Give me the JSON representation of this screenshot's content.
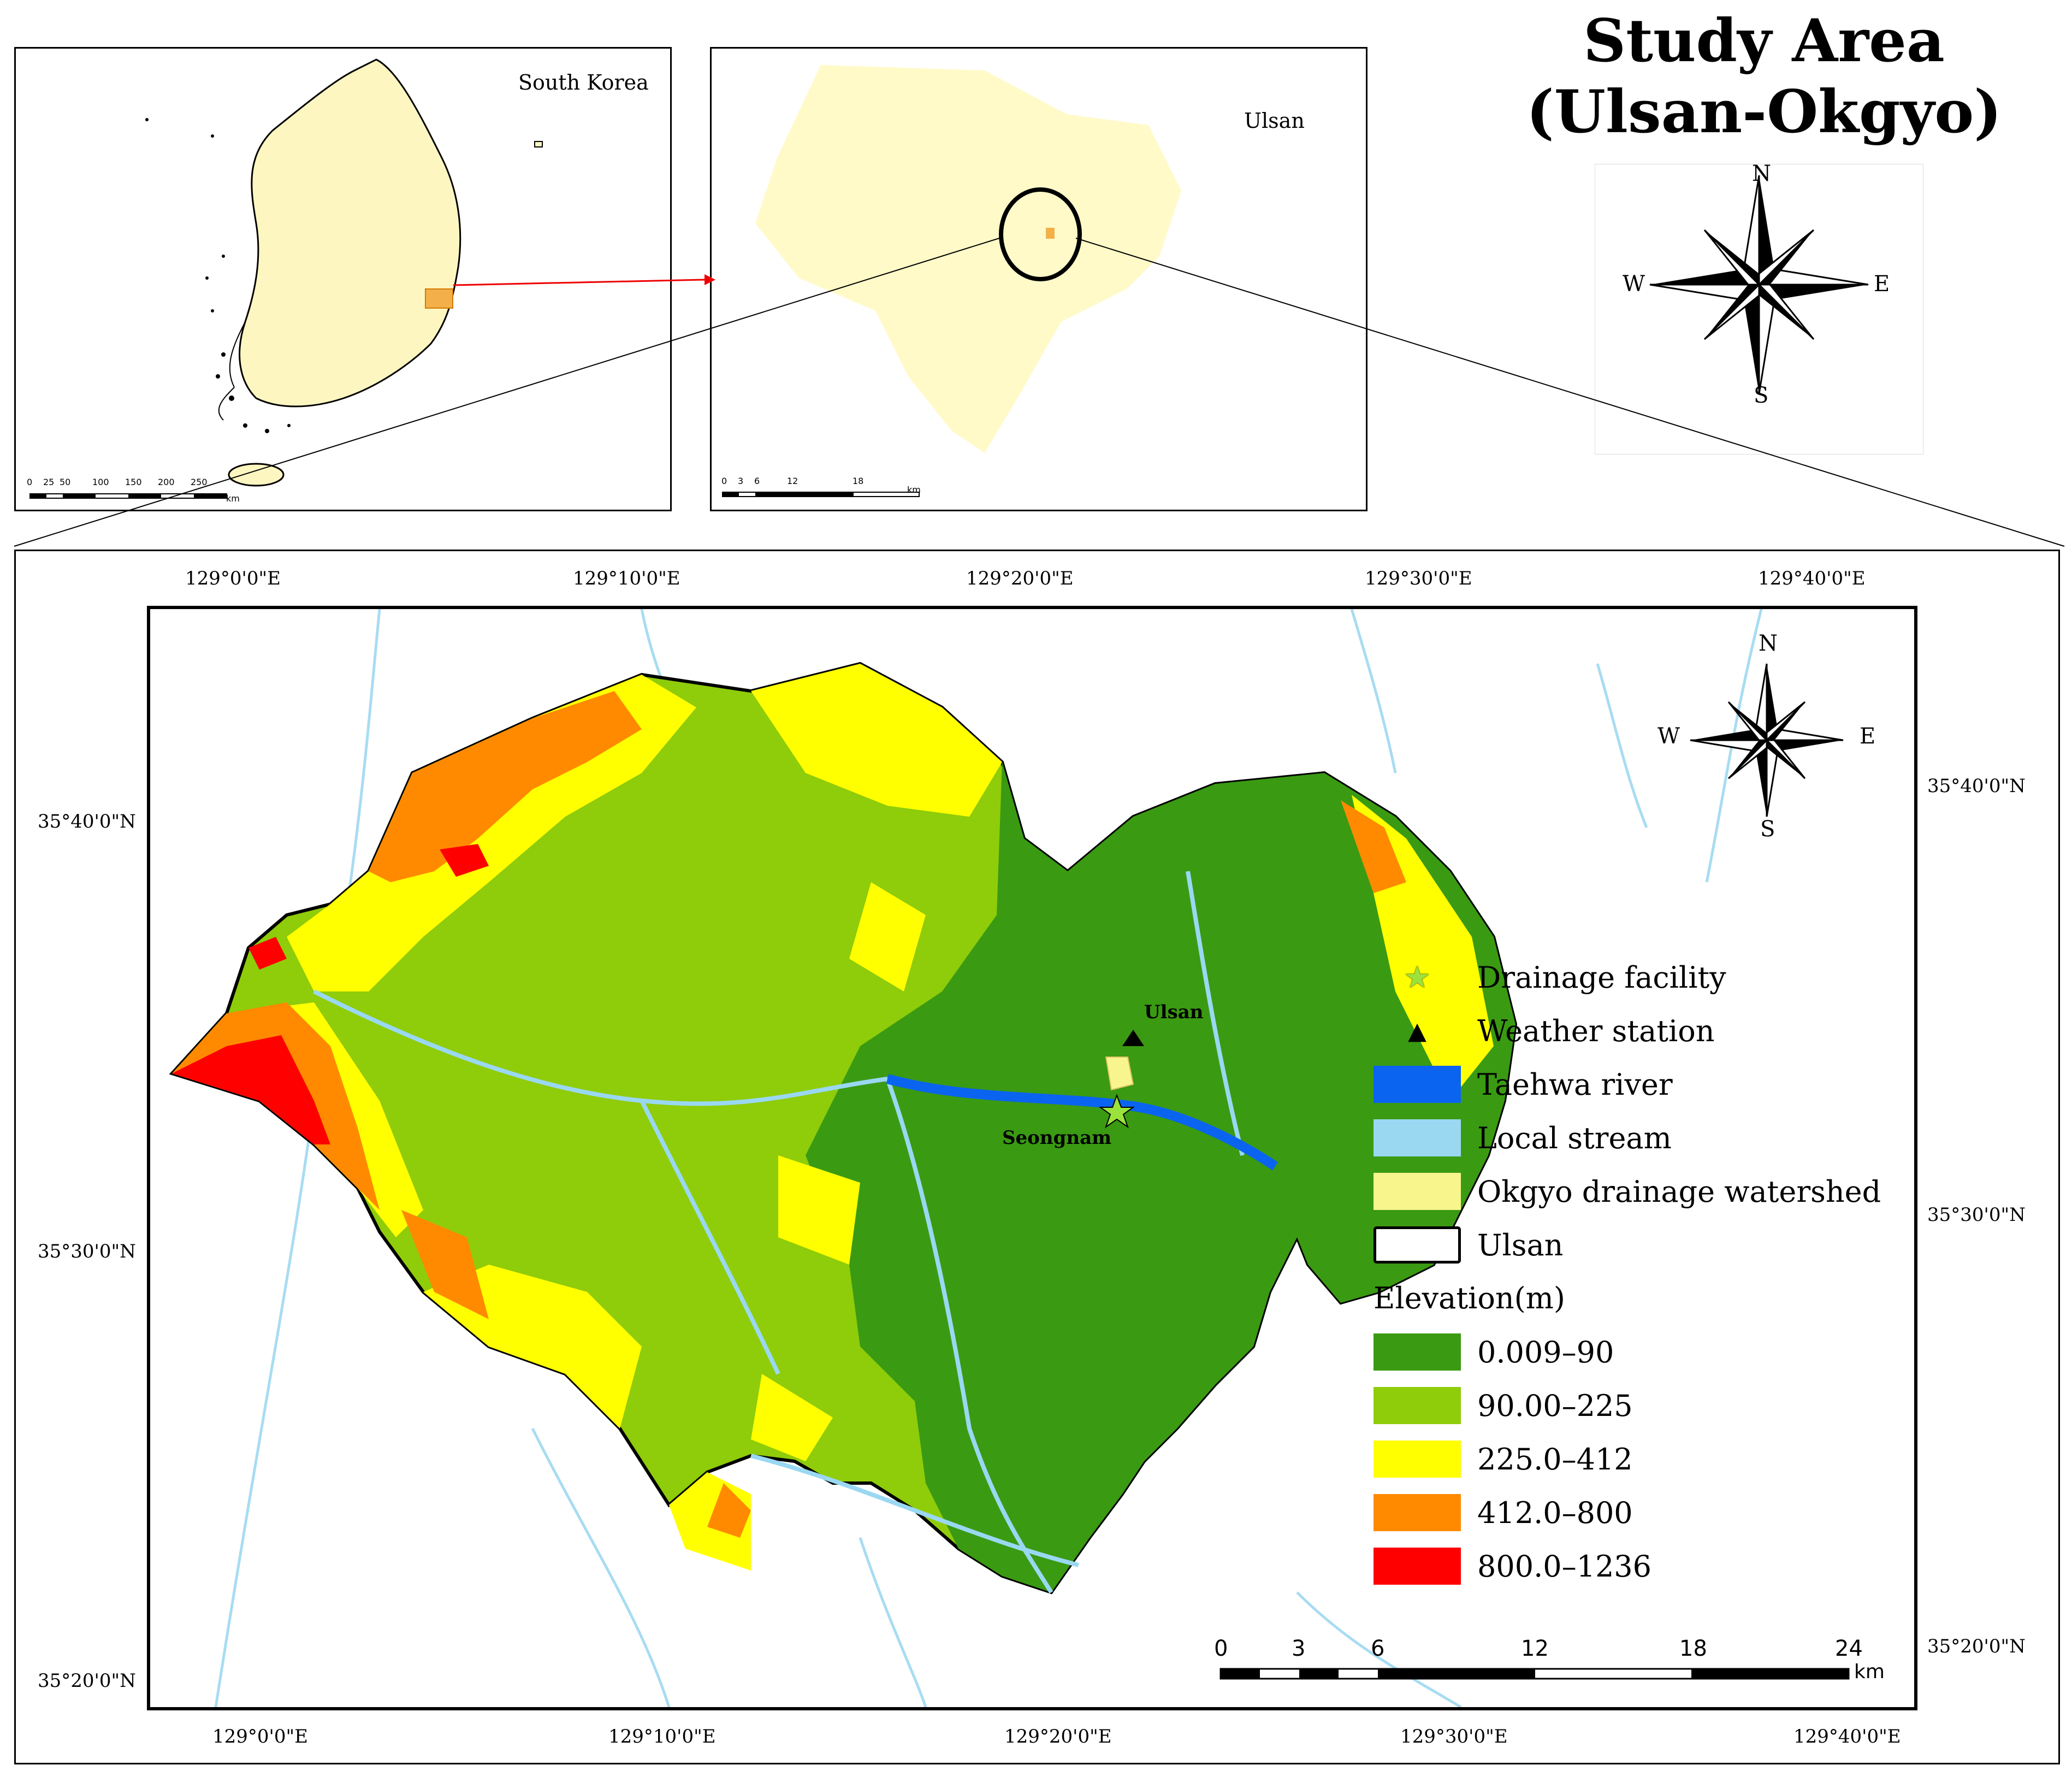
{
  "title": {
    "line1": "Study Area",
    "line2": "(Ulsan-Okgyo)"
  },
  "inset_korea": {
    "label": "South Korea",
    "scale_ticks": [
      "0",
      "25",
      "50",
      "100",
      "150",
      "200",
      "250"
    ],
    "scale_unit": "km"
  },
  "inset_ulsan": {
    "label": "Ulsan",
    "scale_ticks": [
      "0",
      "3",
      "6",
      "12",
      "18"
    ],
    "scale_unit": "km"
  },
  "compass": {
    "n": "N",
    "s": "S",
    "e": "E",
    "w": "W"
  },
  "main_map": {
    "lon_top": [
      "129°0'0\"E",
      "129°10'0\"E",
      "129°20'0\"E",
      "129°30'0\"E",
      "129°40'0\"E"
    ],
    "lon_bottom": [
      "129°0'0\"E",
      "129°10'0\"E",
      "129°20'0\"E",
      "129°30'0\"E",
      "129°40'0\"E"
    ],
    "lat_left": [
      "35°40'0\"N",
      "35°30'0\"N",
      "35°20'0\"N"
    ],
    "lat_right": [
      "35°40'0\"N",
      "35°30'0\"N",
      "35°20'0\"N"
    ],
    "place_ulsan": "Ulsan",
    "place_seongnam": "Seongnam",
    "scale_ticks": [
      "0",
      "3",
      "6",
      "12",
      "18",
      "24"
    ],
    "scale_unit": "km"
  },
  "legend": {
    "items": [
      {
        "label": "Drainage facility",
        "symbol": "star-icon",
        "color": "#9be23c"
      },
      {
        "label": "Weather station",
        "symbol": "triangle-icon",
        "color": "#000000"
      },
      {
        "label": "Taehwa river",
        "color": "#0a64f0"
      },
      {
        "label": "Local stream",
        "color": "#9ad8f2"
      },
      {
        "label": "Okgyo drainage watershed",
        "color": "#f7f58c"
      },
      {
        "label": "Ulsan",
        "color": "#ffffff"
      }
    ],
    "elevation_title": "Elevation(m)",
    "elevation": [
      {
        "label": "0.009–90",
        "color": "#3a9a12"
      },
      {
        "label": "90.00–225",
        "color": "#8fcc0a"
      },
      {
        "label": "225.0–412",
        "color": "#ffff00"
      },
      {
        "label": "412.0–800",
        "color": "#ff8a00"
      },
      {
        "label": "800.0–1236",
        "color": "#ff0000"
      }
    ]
  }
}
